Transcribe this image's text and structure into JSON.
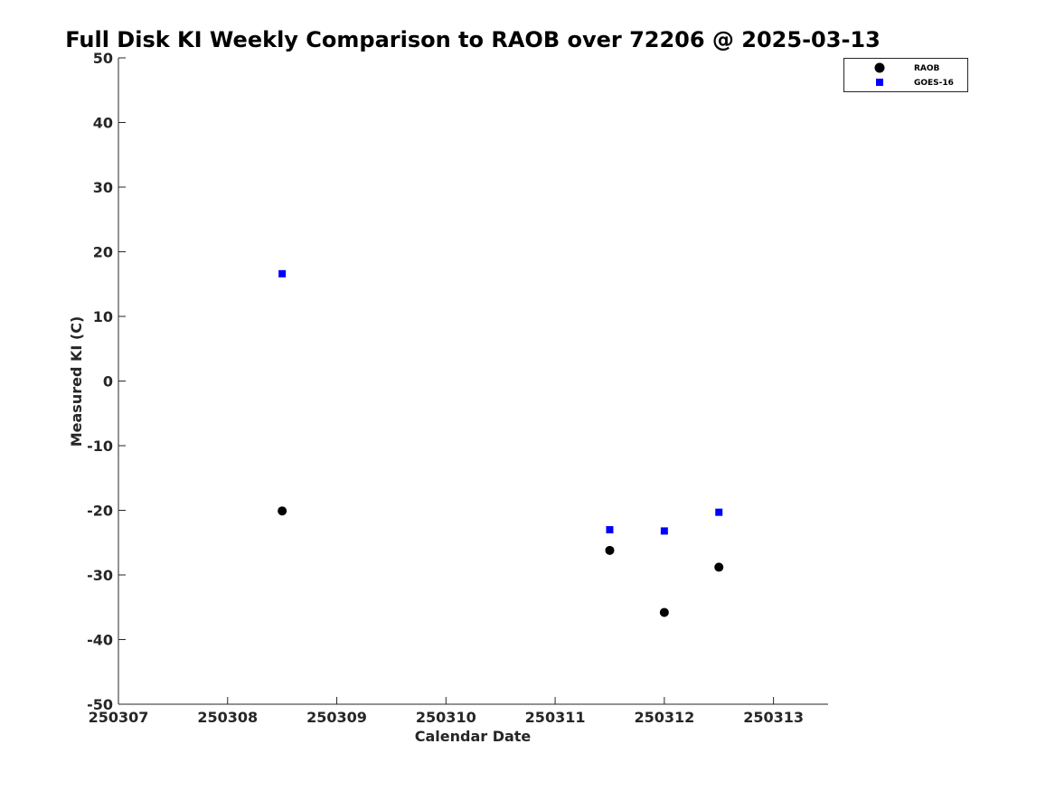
{
  "chart_data": {
    "type": "scatter",
    "title": "Full Disk KI Weekly Comparison to RAOB over 72206 @ 2025-03-13",
    "xlabel": "Calendar Date",
    "ylabel": "Measured KI (C)",
    "xlim": [
      250307,
      250313.5
    ],
    "ylim": [
      -50,
      50
    ],
    "x_ticks": [
      250307,
      250308,
      250309,
      250310,
      250311,
      250312,
      250313
    ],
    "x_tick_labels": [
      "250307",
      "250308",
      "250309",
      "250310",
      "250311",
      "250312",
      "250313"
    ],
    "y_ticks": [
      -50,
      -40,
      -30,
      -20,
      -10,
      0,
      10,
      20,
      30,
      40,
      50
    ],
    "y_tick_labels": [
      "-50",
      "-40",
      "-30",
      "-20",
      "-10",
      "0",
      "10",
      "20",
      "30",
      "40",
      "50"
    ],
    "grid": false,
    "legend_position": "top-right",
    "series": [
      {
        "name": "RAOB",
        "marker": "circle",
        "color": "#000000",
        "points": [
          {
            "x": 250308.5,
            "y": -20.1
          },
          {
            "x": 250311.5,
            "y": -26.2
          },
          {
            "x": 250312.0,
            "y": -35.8
          },
          {
            "x": 250312.5,
            "y": -28.8
          }
        ]
      },
      {
        "name": "GOES-16",
        "marker": "square",
        "color": "#0000ff",
        "points": [
          {
            "x": 250308.5,
            "y": 16.6
          },
          {
            "x": 250311.5,
            "y": -23.0
          },
          {
            "x": 250312.0,
            "y": -23.2
          },
          {
            "x": 250312.5,
            "y": -20.3
          }
        ]
      }
    ]
  }
}
